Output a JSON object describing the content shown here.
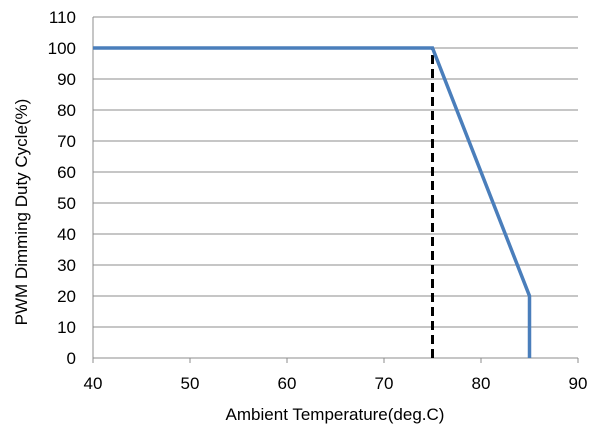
{
  "chart_data": {
    "type": "line",
    "title": "",
    "xlabel": "Ambient Temperature(deg.C)",
    "ylabel": "PWM Dimming Duty Cycle(%)",
    "xlim": [
      40,
      90
    ],
    "ylim": [
      0,
      110
    ],
    "x_ticks": [
      40,
      50,
      60,
      70,
      80,
      90
    ],
    "y_ticks": [
      0,
      10,
      20,
      30,
      40,
      50,
      60,
      70,
      80,
      90,
      100,
      110
    ],
    "grid": "horizontal",
    "legend": "none",
    "series": [
      {
        "x": [
          40,
          75,
          85,
          85
        ],
        "y": [
          100,
          100,
          20,
          0
        ],
        "color": "#4a7ebb",
        "style": "solid"
      }
    ],
    "reference_lines": [
      {
        "x": [
          75,
          75
        ],
        "y": [
          0,
          100
        ],
        "color": "#000000",
        "style": "dashed"
      }
    ],
    "colors": {
      "grid": "#8c8c8c",
      "axis": "#8c8c8c",
      "series": "#4a7ebb"
    }
  }
}
